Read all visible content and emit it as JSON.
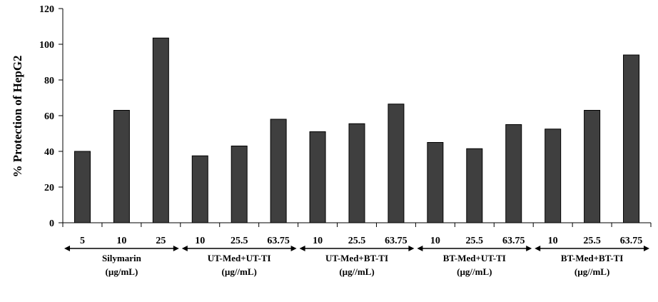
{
  "chart_data": {
    "type": "bar",
    "ylabel": "% Protection of HepG2",
    "ylim": [
      0,
      120
    ],
    "yticks": [
      0,
      20,
      40,
      60,
      80,
      100,
      120
    ],
    "bar_color": "#3f3f3f",
    "categories": [
      "5",
      "10",
      "25",
      "10",
      "25.5",
      "63.75",
      "10",
      "25.5",
      "63.75",
      "10",
      "25.5",
      "63.75",
      "10",
      "25.5",
      "63.75"
    ],
    "values": [
      40,
      63,
      103.5,
      37.5,
      43,
      58,
      51,
      55.5,
      66.5,
      45,
      41.5,
      55,
      52.5,
      63,
      94
    ],
    "groups": [
      {
        "label": "Silymarin",
        "unit": "(µg/mL)",
        "count": 3
      },
      {
        "label": "UT-Med+UT-TI",
        "unit": "(µg//mL)",
        "count": 3
      },
      {
        "label": "UT-Med+BT-TI",
        "unit": "(µg//mL)",
        "count": 3
      },
      {
        "label": "BT-Med+UT-TI",
        "unit": "(µg//mL)",
        "count": 3
      },
      {
        "label": "BT-Med+BT-TI",
        "unit": "(µg//mL)",
        "count": 3
      }
    ],
    "grid": false,
    "legend": "none"
  }
}
